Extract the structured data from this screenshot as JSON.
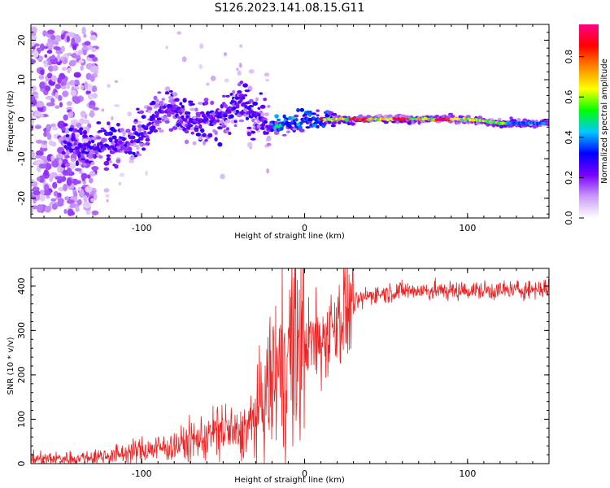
{
  "title": "S126.2023.141.08.15.G11",
  "colors": {
    "snr_line": "#ee2222",
    "axis": "#000000"
  },
  "chart_data": [
    {
      "type": "heatmap",
      "xlabel": "Height of straight line (km)",
      "ylabel": "Frequency (Hz)",
      "xlim": [
        -168,
        150
      ],
      "ylim": [
        -25,
        24
      ],
      "x_ticks": [
        -100,
        0,
        100
      ],
      "y_ticks": [
        -20,
        -10,
        0,
        10,
        20
      ],
      "colorbar": {
        "label": "Normalized spectral amplitude",
        "range": [
          0,
          0.96
        ],
        "ticks": [
          0.0,
          0.2,
          0.4,
          0.6,
          0.8
        ],
        "colormap": [
          "#ffffff",
          "#c99af7",
          "#7a00ff",
          "#0000ff",
          "#00c8ff",
          "#00ff00",
          "#ffff00",
          "#ff8800",
          "#ff0000",
          "#ff0088"
        ]
      },
      "ridge_frequency_hz": [
        [
          -140,
          -7
        ],
        [
          -125,
          -7
        ],
        [
          -110,
          -6
        ],
        [
          -100,
          -4
        ],
        [
          -90,
          2
        ],
        [
          -80,
          3
        ],
        [
          -70,
          -1
        ],
        [
          -60,
          0
        ],
        [
          -50,
          1
        ],
        [
          -40,
          4
        ],
        [
          -30,
          1
        ],
        [
          -20,
          -2
        ],
        [
          -10,
          -1
        ],
        [
          0,
          0
        ],
        [
          20,
          0
        ],
        [
          40,
          0
        ],
        [
          60,
          0
        ],
        [
          80,
          0
        ],
        [
          100,
          0
        ],
        [
          120,
          -1
        ],
        [
          148,
          -1
        ]
      ]
    },
    {
      "type": "line",
      "xlabel": "Height of straight line (km)",
      "ylabel": "SNR (10 * v/v)",
      "xlim": [
        -168,
        150
      ],
      "ylim": [
        0,
        440
      ],
      "x_ticks": [
        -100,
        0,
        100
      ],
      "y_ticks": [
        0,
        100,
        200,
        300,
        400
      ],
      "envelope": {
        "x": [
          -168,
          -140,
          -120,
          -100,
          -80,
          -60,
          -50,
          -40,
          -30,
          -20,
          -10,
          0,
          10,
          20,
          30,
          40,
          50,
          60,
          80,
          100,
          120,
          150
        ],
        "y": [
          10,
          12,
          18,
          30,
          40,
          60,
          80,
          60,
          100,
          190,
          250,
          280,
          270,
          330,
          360,
          380,
          385,
          390,
          390,
          390,
          390,
          395
        ]
      }
    }
  ]
}
